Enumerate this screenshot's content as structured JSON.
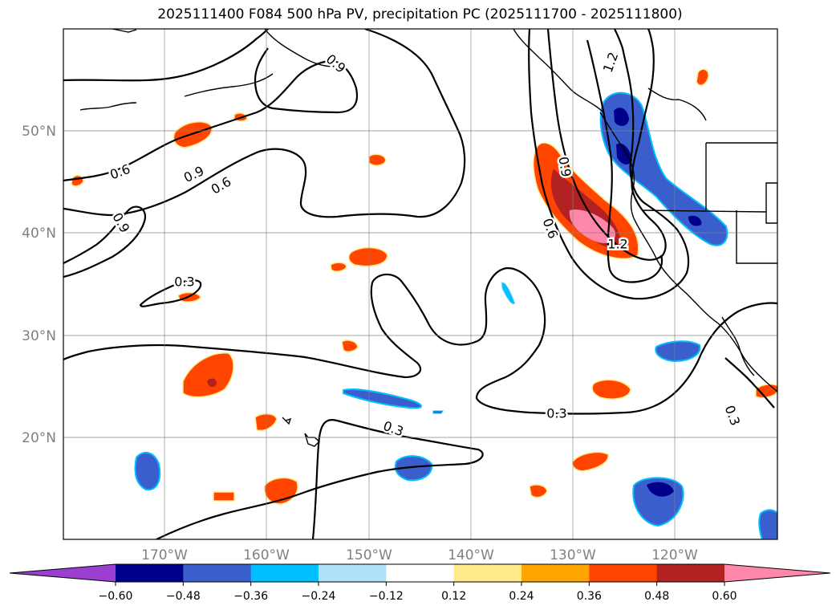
{
  "title": "2025111400 F084 500 hPa PV, precipitation PC (2025111700 - 2025111800)",
  "lat_ticks": [
    "50°N",
    "40°N",
    "30°N",
    "20°N"
  ],
  "lon_ticks": [
    "170°W",
    "160°W",
    "150°W",
    "140°W",
    "130°W",
    "120°W"
  ],
  "colorbar": {
    "ticks": [
      "−0.60",
      "−0.48",
      "−0.36",
      "−0.24",
      "−0.12",
      "0.12",
      "0.24",
      "0.36",
      "0.48",
      "0.60"
    ],
    "colors": [
      "#9b3fd1",
      "#00008b",
      "#3a5fcd",
      "#00bfff",
      "#b0e0fa",
      "#ffffff",
      "#ffe98a",
      "#ffa500",
      "#ff4500",
      "#b22222",
      "#ff88aa"
    ]
  },
  "pv_labels": [
    "0.9",
    "0.6",
    "0.9",
    "0.6",
    "0.9",
    "0.3",
    "0.9",
    "0.6",
    "1.2",
    "1.2",
    "0.3",
    "0.3",
    "0.3"
  ]
}
